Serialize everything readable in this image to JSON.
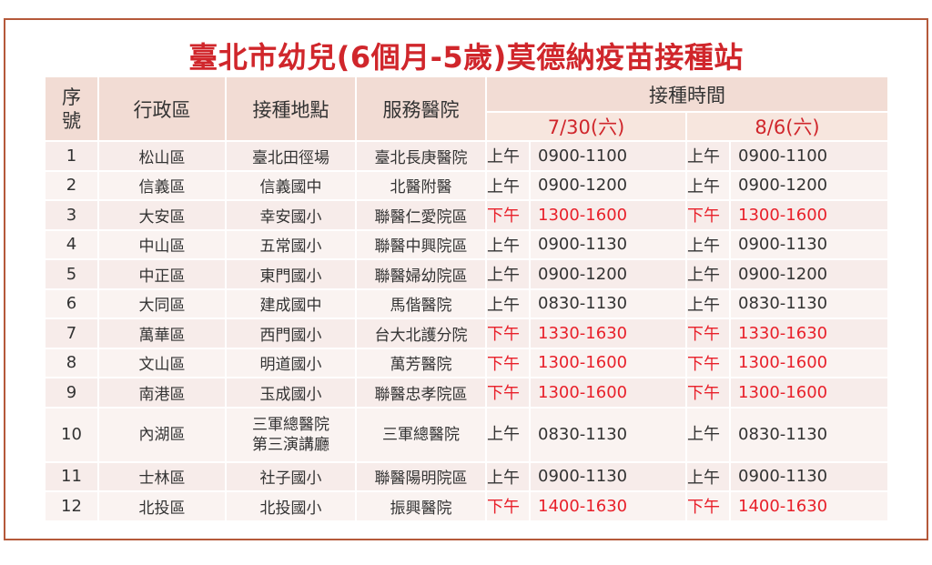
{
  "title": "臺北市幼兒(6個月-5歲)莫德納疫苗接種站",
  "headers": {
    "no": "序\n號",
    "district": "行政區",
    "site": "接種地點",
    "hospital": "服務醫院",
    "time": "接種時間",
    "date1": "7/30(六)",
    "date2": "8/6(六)"
  },
  "rows": [
    {
      "no": "1",
      "district": "松山區",
      "site": "臺北田徑場",
      "hospital": "臺北長庚醫院",
      "p1": "上午",
      "t1": "0900-1100",
      "p2": "上午",
      "t2": "0900-1100",
      "red": false
    },
    {
      "no": "2",
      "district": "信義區",
      "site": "信義國中",
      "hospital": "北醫附醫",
      "p1": "上午",
      "t1": "0900-1200",
      "p2": "上午",
      "t2": "0900-1200",
      "red": false
    },
    {
      "no": "3",
      "district": "大安區",
      "site": "幸安國小",
      "hospital": "聯醫仁愛院區",
      "p1": "下午",
      "t1": "1300-1600",
      "p2": "下午",
      "t2": "1300-1600",
      "red": true
    },
    {
      "no": "4",
      "district": "中山區",
      "site": "五常國小",
      "hospital": "聯醫中興院區",
      "p1": "上午",
      "t1": "0900-1130",
      "p2": "上午",
      "t2": "0900-1130",
      "red": false
    },
    {
      "no": "5",
      "district": "中正區",
      "site": "東門國小",
      "hospital": "聯醫婦幼院區",
      "p1": "上午",
      "t1": "0900-1200",
      "p2": "上午",
      "t2": "0900-1200",
      "red": false
    },
    {
      "no": "6",
      "district": "大同區",
      "site": "建成國中",
      "hospital": "馬偕醫院",
      "p1": "上午",
      "t1": "0830-1130",
      "p2": "上午",
      "t2": "0830-1130",
      "red": false
    },
    {
      "no": "7",
      "district": "萬華區",
      "site": "西門國小",
      "hospital": "台大北護分院",
      "p1": "下午",
      "t1": "1330-1630",
      "p2": "下午",
      "t2": "1330-1630",
      "red": true
    },
    {
      "no": "8",
      "district": "文山區",
      "site": "明道國小",
      "hospital": "萬芳醫院",
      "p1": "下午",
      "t1": "1300-1600",
      "p2": "下午",
      "t2": "1300-1600",
      "red": true
    },
    {
      "no": "9",
      "district": "南港區",
      "site": "玉成國小",
      "hospital": "聯醫忠孝院區",
      "p1": "下午",
      "t1": "1300-1600",
      "p2": "下午",
      "t2": "1300-1600",
      "red": true
    },
    {
      "no": "10",
      "district": "內湖區",
      "site": "三軍總醫院\n第三演講廳",
      "hospital": "三軍總醫院",
      "p1": "上午",
      "t1": "0830-1130",
      "p2": "上午",
      "t2": "0830-1130",
      "red": false
    },
    {
      "no": "11",
      "district": "士林區",
      "site": "社子國小",
      "hospital": "聯醫陽明院區",
      "p1": "上午",
      "t1": "0900-1130",
      "p2": "上午",
      "t2": "0900-1130",
      "red": false
    },
    {
      "no": "12",
      "district": "北投區",
      "site": "北投國小",
      "hospital": "振興醫院",
      "p1": "下午",
      "t1": "1400-1630",
      "p2": "下午",
      "t2": "1400-1630",
      "red": true
    }
  ]
}
